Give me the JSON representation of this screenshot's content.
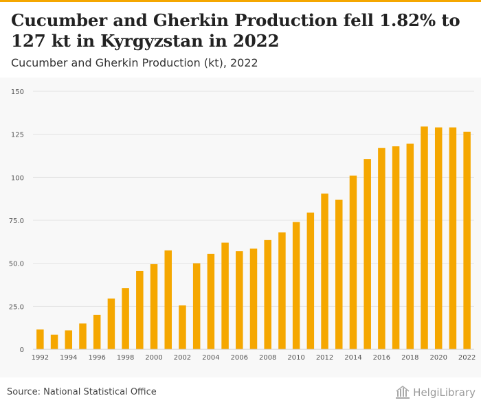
{
  "title": "Cucumber and Gherkin Production fell 1.82% to 127 kt in Kyrgyzstan in 2022",
  "subtitle": "Cucumber and Gherkin Production (kt), 2022",
  "source": "Source: National Statistical Office",
  "brand": "HelgiLibrary",
  "colors": {
    "accent": "#f5a700",
    "bar": "#f5a700",
    "grid": "#e2e2e2",
    "tick": "#555555"
  },
  "chart_data": {
    "type": "bar",
    "categories": [
      "1992",
      "1993",
      "1994",
      "1995",
      "1996",
      "1997",
      "1998",
      "1999",
      "2000",
      "2001",
      "2002",
      "2003",
      "2004",
      "2005",
      "2006",
      "2007",
      "2008",
      "2009",
      "2010",
      "2011",
      "2012",
      "2013",
      "2014",
      "2015",
      "2016",
      "2017",
      "2018",
      "2019",
      "2020",
      "2021",
      "2022"
    ],
    "values": [
      11.5,
      8.5,
      11,
      15,
      20,
      29.5,
      35.5,
      45.5,
      49.5,
      57.5,
      25.5,
      50,
      55.5,
      62,
      57,
      58.5,
      63.5,
      68,
      74,
      79.5,
      90.5,
      87,
      101,
      110.5,
      117,
      118,
      119.5,
      129.5,
      129,
      129,
      126.5
    ],
    "xticks": [
      "1992",
      "1994",
      "1996",
      "1998",
      "2000",
      "2002",
      "2004",
      "2006",
      "2008",
      "2010",
      "2012",
      "2014",
      "2016",
      "2018",
      "2020",
      "2022"
    ],
    "yticks": [
      0,
      25,
      50,
      75,
      100,
      125,
      150
    ],
    "ytick_labels": [
      "0",
      "25.0",
      "50.0",
      "75.0",
      "100",
      "125",
      "150"
    ],
    "ylim": [
      0,
      150
    ],
    "grid": true
  }
}
